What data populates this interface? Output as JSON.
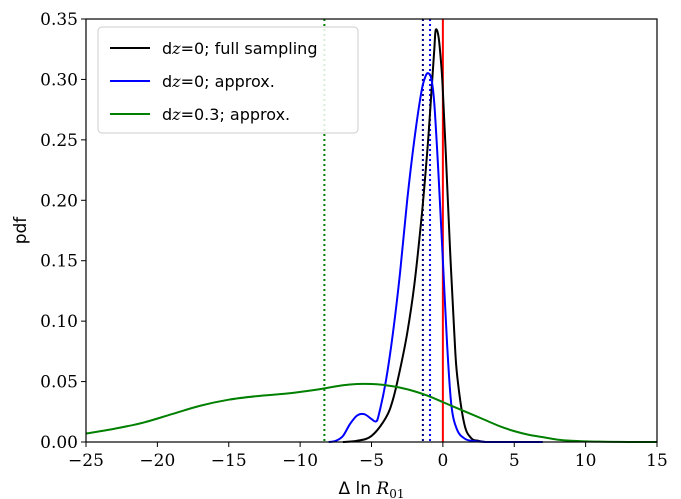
{
  "chart_data": {
    "type": "line",
    "xlabel": "Δ ln R01",
    "xlabel_parts": {
      "prefix": "Δ ln ",
      "var": "R",
      "sub": "01"
    },
    "ylabel": "pdf",
    "xlim": [
      -25,
      15
    ],
    "ylim": [
      0,
      0.35
    ],
    "xticks": [
      -25,
      -20,
      -15,
      -10,
      -5,
      0,
      5,
      10,
      15
    ],
    "xtick_labels": [
      "−25",
      "−20",
      "−15",
      "−10",
      "−5",
      "0",
      "5",
      "10",
      "15"
    ],
    "yticks": [
      0.0,
      0.05,
      0.1,
      0.15,
      0.2,
      0.25,
      0.3,
      0.35
    ],
    "ytick_labels": [
      "0.00",
      "0.05",
      "0.10",
      "0.15",
      "0.20",
      "0.25",
      "0.30",
      "0.35"
    ],
    "grid": false,
    "legend_position": "top-left",
    "series": [
      {
        "name": "dz=0; full sampling",
        "label_parts": {
          "pre": "d",
          "var": "z",
          "post": "=0; full sampling"
        },
        "color": "#000000",
        "x": [
          -7,
          -6,
          -5,
          -4,
          -3.5,
          -3,
          -2.5,
          -2,
          -1.5,
          -1.2,
          -1,
          -0.8,
          -0.6,
          -0.5,
          -0.3,
          -0.1,
          0,
          0.2,
          0.5,
          0.8,
          1,
          1.5,
          2,
          2.5,
          3
        ],
        "y": [
          0,
          0.001,
          0.005,
          0.02,
          0.035,
          0.06,
          0.09,
          0.13,
          0.185,
          0.225,
          0.255,
          0.29,
          0.325,
          0.341,
          0.335,
          0.31,
          0.29,
          0.24,
          0.16,
          0.09,
          0.055,
          0.015,
          0.003,
          0.001,
          0
        ]
      },
      {
        "name": "dz=0; approx.",
        "label_parts": {
          "pre": "d",
          "var": "z",
          "post": "=0; approx."
        },
        "color": "#0000ff",
        "x": [
          -8,
          -7.5,
          -7,
          -6.5,
          -6,
          -5.5,
          -5,
          -4.7,
          -4.5,
          -4,
          -3.5,
          -3,
          -2.5,
          -2,
          -1.5,
          -1.2,
          -1,
          -0.8,
          -0.6,
          -0.3,
          0,
          0.3,
          0.6,
          1,
          1.5,
          2,
          3,
          5,
          7
        ],
        "y": [
          0,
          0.001,
          0.005,
          0.015,
          0.022,
          0.023,
          0.019,
          0.017,
          0.022,
          0.05,
          0.09,
          0.14,
          0.2,
          0.25,
          0.29,
          0.303,
          0.305,
          0.3,
          0.28,
          0.22,
          0.15,
          0.08,
          0.03,
          0.01,
          0.003,
          0.001,
          0,
          0,
          0
        ]
      },
      {
        "name": "dz=0.3; approx.",
        "label_parts": {
          "pre": "d",
          "var": "z",
          "post": "=0.3; approx."
        },
        "color": "#008000",
        "x": [
          -25,
          -23,
          -21,
          -19,
          -17,
          -15,
          -13,
          -11,
          -9,
          -8,
          -7,
          -6,
          -5,
          -4,
          -3,
          -2,
          -1,
          0,
          1,
          2,
          3,
          4,
          5,
          6,
          7,
          8,
          9,
          10,
          11,
          12,
          13,
          15
        ],
        "y": [
          0.007,
          0.011,
          0.016,
          0.023,
          0.03,
          0.035,
          0.038,
          0.04,
          0.043,
          0.045,
          0.047,
          0.048,
          0.048,
          0.047,
          0.045,
          0.042,
          0.038,
          0.033,
          0.028,
          0.023,
          0.018,
          0.013,
          0.009,
          0.006,
          0.004,
          0.002,
          0.001,
          0.0005,
          0.0003,
          0.0001,
          0,
          0
        ]
      }
    ],
    "vlines": [
      {
        "x": -8.3,
        "color": "#008000",
        "style": "dotted"
      },
      {
        "x": -1.4,
        "color": "#000080",
        "style": "dotted"
      },
      {
        "x": -0.9,
        "color": "#0000ff",
        "style": "dotted"
      },
      {
        "x": 0.0,
        "color": "#ff0000",
        "style": "solid"
      }
    ]
  }
}
